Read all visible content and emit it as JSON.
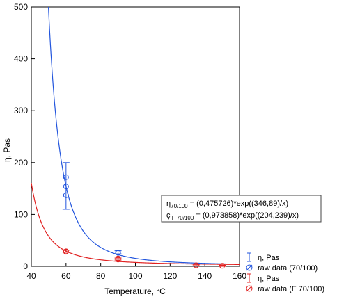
{
  "chart_data": {
    "type": "scatter",
    "xlabel": "Temperature, °C",
    "ylabel": "η, Pas",
    "xlim": [
      40,
      160
    ],
    "ylim": [
      0,
      500
    ],
    "xticks": [
      "40",
      "60",
      "80",
      "100",
      "120",
      "140",
      "160"
    ],
    "yticks": [
      "0",
      "100",
      "200",
      "300",
      "400",
      "500"
    ],
    "grid": false,
    "legend_position": "bottom-right",
    "series": [
      {
        "name": "η, Pas",
        "kind": "errorbar",
        "color": "#2255dd",
        "points": [
          {
            "x": 60,
            "y": 155,
            "low": 110,
            "high": 200
          },
          {
            "x": 90,
            "y": 27,
            "low": 24,
            "high": 30
          }
        ]
      },
      {
        "name": "raw data (70/100)",
        "kind": "raw",
        "color": "#2255dd",
        "points": [
          {
            "x": 60,
            "y": 172
          },
          {
            "x": 60,
            "y": 154
          },
          {
            "x": 60,
            "y": 137
          },
          {
            "x": 90,
            "y": 27
          },
          {
            "x": 90,
            "y": 26
          }
        ]
      },
      {
        "name": "η, Pas",
        "kind": "errorbar",
        "color": "#e02020",
        "points": [
          {
            "x": 60,
            "y": 29,
            "low": 27,
            "high": 31
          },
          {
            "x": 90,
            "y": 14,
            "low": 12,
            "high": 16
          },
          {
            "x": 135,
            "y": 2,
            "low": 1,
            "high": 3
          },
          {
            "x": 150,
            "y": 1,
            "low": 0,
            "high": 2
          }
        ]
      },
      {
        "name": "raw data (F 70/100)",
        "kind": "raw",
        "color": "#e02020",
        "points": [
          {
            "x": 60,
            "y": 29
          },
          {
            "x": 60,
            "y": 28
          },
          {
            "x": 90,
            "y": 15
          },
          {
            "x": 90,
            "y": 13
          },
          {
            "x": 135,
            "y": 2
          },
          {
            "x": 150,
            "y": 1
          }
        ]
      }
    ],
    "fits": [
      {
        "label": "η",
        "subscript": "70/100",
        "a": 0.475726,
        "b": 346.89,
        "color": "#2255dd",
        "x_start": 49.5
      },
      {
        "label": "ç",
        "subscript": " F 70/100",
        "a": 0.973858,
        "b": 204.239,
        "color": "#e02020",
        "x_start": 40
      }
    ],
    "equations": [
      {
        "prefix": "η",
        "sub": "70/100",
        "rest": " = (0,475726)*exp((346,89)/x)"
      },
      {
        "prefix": "ç",
        "sub": " F 70/100",
        "rest": " = (0,973858)*exp((204,239)/x)"
      }
    ]
  }
}
